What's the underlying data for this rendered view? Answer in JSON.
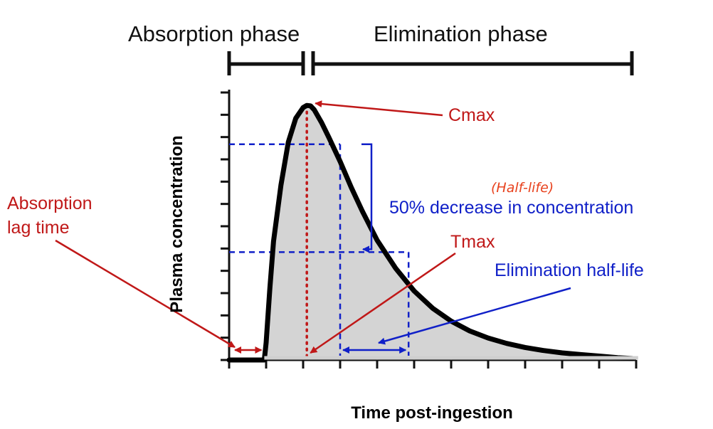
{
  "chart_data": {
    "type": "line",
    "title": "",
    "xlabel": "Time post-ingestion",
    "ylabel": "Plasma concentration",
    "x_ticks": 12,
    "y_ticks": 13,
    "xlim": [
      0,
      11
    ],
    "ylim": [
      0,
      12.4
    ],
    "series": [
      {
        "name": "",
        "x": [
          0.0,
          0.5,
          0.95,
          1.0,
          1.1,
          1.2,
          1.4,
          1.6,
          1.8,
          2.0,
          2.1,
          2.2,
          2.3,
          2.5,
          2.7,
          3.0,
          3.3,
          3.6,
          4.0,
          4.5,
          5.0,
          5.5,
          6.0,
          6.5,
          7.0,
          7.5,
          8.0,
          8.5,
          9.0,
          9.5,
          10.0,
          10.5,
          10.9
        ],
        "y": [
          0,
          0,
          0,
          0.8,
          3.3,
          5.5,
          8.1,
          10.1,
          11.2,
          11.7,
          11.8,
          11.78,
          11.6,
          11.0,
          10.3,
          9.2,
          8.0,
          6.9,
          5.55,
          4.25,
          3.2,
          2.4,
          1.8,
          1.35,
          1.02,
          0.77,
          0.58,
          0.44,
          0.33,
          0.25,
          0.18,
          0.11,
          0.07
        ]
      }
    ],
    "cmax": {
      "x": 2.1,
      "y": 11.8
    },
    "tmax_x": 2.1,
    "half_life": {
      "c1": 10.0,
      "t1": 3.0,
      "c2": 5.0,
      "t2": 4.85
    },
    "lag_time": {
      "x0": 0.0,
      "x1": 0.95
    }
  },
  "phases": {
    "absorption": "Absorption phase",
    "elimination": "Elimination phase"
  },
  "annotations": {
    "cmax": "Cmax",
    "tmax": "Tmax",
    "absorption_lag_line1": "Absorption",
    "absorption_lag_line2": "lag time",
    "half_life_note": "(Half-life)",
    "decrease": "50% decrease in concentration",
    "elimination_half_life": "Elimination half-life"
  },
  "colors": {
    "annotation_red": "#c01818",
    "annotation_blue": "#1020c8",
    "curve": "#000000",
    "area_fill": "#d4d4d4",
    "handwriting": "#e8421e"
  }
}
